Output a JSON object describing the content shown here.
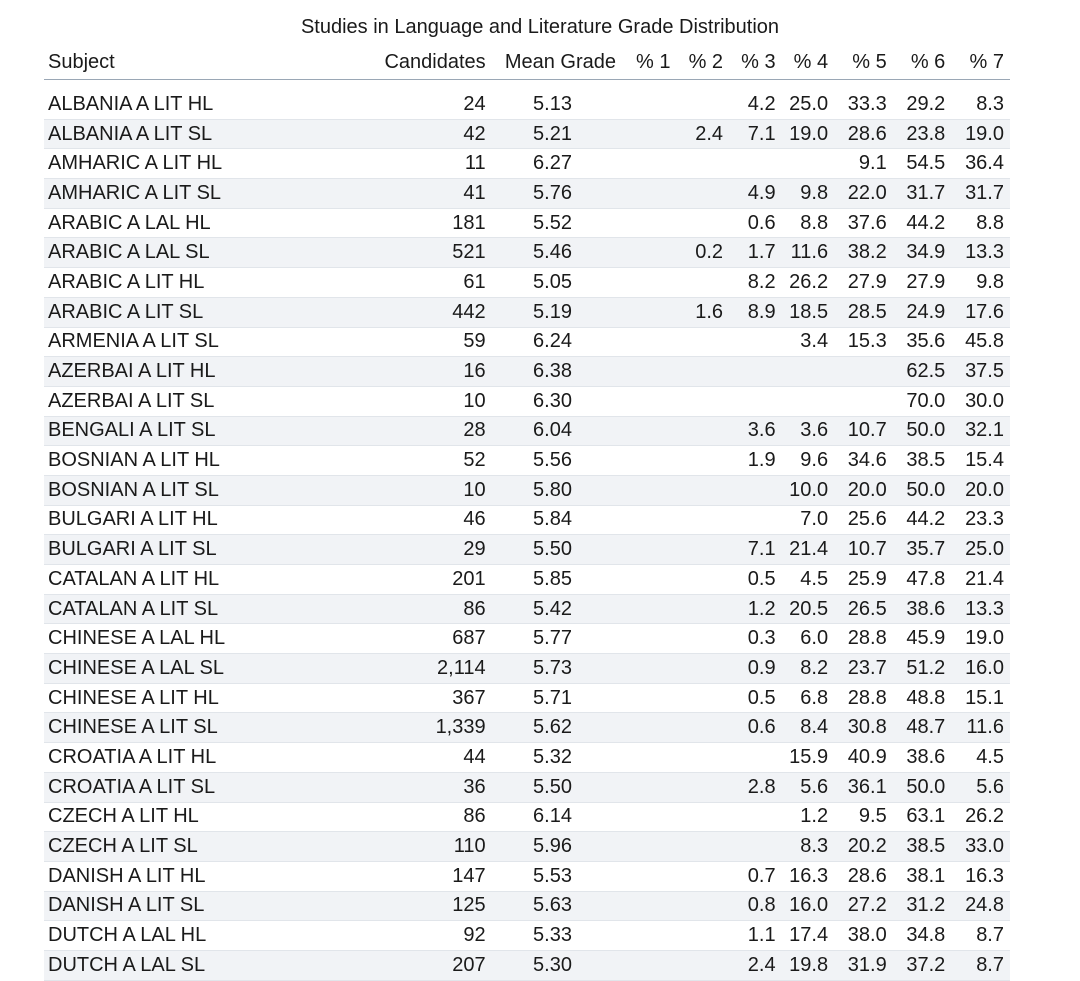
{
  "title": "Studies in Language and Literature Grade Distribution",
  "headers": {
    "subject": "Subject",
    "candidates": "Candidates",
    "mean": "Mean Grade",
    "p1": "% 1",
    "p2": "% 2",
    "p3": "% 3",
    "p4": "% 4",
    "p5": "% 5",
    "p6": "% 6",
    "p7": "% 7"
  },
  "rows": [
    {
      "subject": "ALBANIA A LIT HL",
      "candidates": "24",
      "mean": "5.13",
      "p1": "",
      "p2": "",
      "p3": "4.2",
      "p4": "25.0",
      "p5": "33.3",
      "p6": "29.2",
      "p7": "8.3"
    },
    {
      "subject": "ALBANIA A LIT SL",
      "candidates": "42",
      "mean": "5.21",
      "p1": "",
      "p2": "2.4",
      "p3": "7.1",
      "p4": "19.0",
      "p5": "28.6",
      "p6": "23.8",
      "p7": "19.0"
    },
    {
      "subject": "AMHARIC A LIT HL",
      "candidates": "11",
      "mean": "6.27",
      "p1": "",
      "p2": "",
      "p3": "",
      "p4": "",
      "p5": "9.1",
      "p6": "54.5",
      "p7": "36.4"
    },
    {
      "subject": "AMHARIC A LIT SL",
      "candidates": "41",
      "mean": "5.76",
      "p1": "",
      "p2": "",
      "p3": "4.9",
      "p4": "9.8",
      "p5": "22.0",
      "p6": "31.7",
      "p7": "31.7"
    },
    {
      "subject": "ARABIC A LAL HL",
      "candidates": "181",
      "mean": "5.52",
      "p1": "",
      "p2": "",
      "p3": "0.6",
      "p4": "8.8",
      "p5": "37.6",
      "p6": "44.2",
      "p7": "8.8"
    },
    {
      "subject": "ARABIC A LAL SL",
      "candidates": "521",
      "mean": "5.46",
      "p1": "",
      "p2": "0.2",
      "p3": "1.7",
      "p4": "11.6",
      "p5": "38.2",
      "p6": "34.9",
      "p7": "13.3"
    },
    {
      "subject": "ARABIC A LIT HL",
      "candidates": "61",
      "mean": "5.05",
      "p1": "",
      "p2": "",
      "p3": "8.2",
      "p4": "26.2",
      "p5": "27.9",
      "p6": "27.9",
      "p7": "9.8"
    },
    {
      "subject": "ARABIC A LIT SL",
      "candidates": "442",
      "mean": "5.19",
      "p1": "",
      "p2": "1.6",
      "p3": "8.9",
      "p4": "18.5",
      "p5": "28.5",
      "p6": "24.9",
      "p7": "17.6"
    },
    {
      "subject": "ARMENIA A LIT SL",
      "candidates": "59",
      "mean": "6.24",
      "p1": "",
      "p2": "",
      "p3": "",
      "p4": "3.4",
      "p5": "15.3",
      "p6": "35.6",
      "p7": "45.8"
    },
    {
      "subject": "AZERBAI A LIT HL",
      "candidates": "16",
      "mean": "6.38",
      "p1": "",
      "p2": "",
      "p3": "",
      "p4": "",
      "p5": "",
      "p6": "62.5",
      "p7": "37.5"
    },
    {
      "subject": "AZERBAI A LIT SL",
      "candidates": "10",
      "mean": "6.30",
      "p1": "",
      "p2": "",
      "p3": "",
      "p4": "",
      "p5": "",
      "p6": "70.0",
      "p7": "30.0"
    },
    {
      "subject": "BENGALI A LIT SL",
      "candidates": "28",
      "mean": "6.04",
      "p1": "",
      "p2": "",
      "p3": "3.6",
      "p4": "3.6",
      "p5": "10.7",
      "p6": "50.0",
      "p7": "32.1"
    },
    {
      "subject": "BOSNIAN A LIT HL",
      "candidates": "52",
      "mean": "5.56",
      "p1": "",
      "p2": "",
      "p3": "1.9",
      "p4": "9.6",
      "p5": "34.6",
      "p6": "38.5",
      "p7": "15.4"
    },
    {
      "subject": "BOSNIAN A LIT SL",
      "candidates": "10",
      "mean": "5.80",
      "p1": "",
      "p2": "",
      "p3": "",
      "p4": "10.0",
      "p5": "20.0",
      "p6": "50.0",
      "p7": "20.0"
    },
    {
      "subject": "BULGARI A LIT HL",
      "candidates": "46",
      "mean": "5.84",
      "p1": "",
      "p2": "",
      "p3": "",
      "p4": "7.0",
      "p5": "25.6",
      "p6": "44.2",
      "p7": "23.3"
    },
    {
      "subject": "BULGARI A LIT SL",
      "candidates": "29",
      "mean": "5.50",
      "p1": "",
      "p2": "",
      "p3": "7.1",
      "p4": "21.4",
      "p5": "10.7",
      "p6": "35.7",
      "p7": "25.0"
    },
    {
      "subject": "CATALAN A LIT HL",
      "candidates": "201",
      "mean": "5.85",
      "p1": "",
      "p2": "",
      "p3": "0.5",
      "p4": "4.5",
      "p5": "25.9",
      "p6": "47.8",
      "p7": "21.4"
    },
    {
      "subject": "CATALAN A LIT SL",
      "candidates": "86",
      "mean": "5.42",
      "p1": "",
      "p2": "",
      "p3": "1.2",
      "p4": "20.5",
      "p5": "26.5",
      "p6": "38.6",
      "p7": "13.3"
    },
    {
      "subject": "CHINESE A LAL HL",
      "candidates": "687",
      "mean": "5.77",
      "p1": "",
      "p2": "",
      "p3": "0.3",
      "p4": "6.0",
      "p5": "28.8",
      "p6": "45.9",
      "p7": "19.0"
    },
    {
      "subject": "CHINESE A LAL SL",
      "candidates": "2,114",
      "mean": "5.73",
      "p1": "",
      "p2": "",
      "p3": "0.9",
      "p4": "8.2",
      "p5": "23.7",
      "p6": "51.2",
      "p7": "16.0"
    },
    {
      "subject": "CHINESE A LIT HL",
      "candidates": "367",
      "mean": "5.71",
      "p1": "",
      "p2": "",
      "p3": "0.5",
      "p4": "6.8",
      "p5": "28.8",
      "p6": "48.8",
      "p7": "15.1"
    },
    {
      "subject": "CHINESE A LIT SL",
      "candidates": "1,339",
      "mean": "5.62",
      "p1": "",
      "p2": "",
      "p3": "0.6",
      "p4": "8.4",
      "p5": "30.8",
      "p6": "48.7",
      "p7": "11.6"
    },
    {
      "subject": "CROATIA A LIT HL",
      "candidates": "44",
      "mean": "5.32",
      "p1": "",
      "p2": "",
      "p3": "",
      "p4": "15.9",
      "p5": "40.9",
      "p6": "38.6",
      "p7": "4.5"
    },
    {
      "subject": "CROATIA A LIT SL",
      "candidates": "36",
      "mean": "5.50",
      "p1": "",
      "p2": "",
      "p3": "2.8",
      "p4": "5.6",
      "p5": "36.1",
      "p6": "50.0",
      "p7": "5.6"
    },
    {
      "subject": "CZECH A LIT HL",
      "candidates": "86",
      "mean": "6.14",
      "p1": "",
      "p2": "",
      "p3": "",
      "p4": "1.2",
      "p5": "9.5",
      "p6": "63.1",
      "p7": "26.2"
    },
    {
      "subject": "CZECH A LIT SL",
      "candidates": "110",
      "mean": "5.96",
      "p1": "",
      "p2": "",
      "p3": "",
      "p4": "8.3",
      "p5": "20.2",
      "p6": "38.5",
      "p7": "33.0"
    },
    {
      "subject": "DANISH A LIT HL",
      "candidates": "147",
      "mean": "5.53",
      "p1": "",
      "p2": "",
      "p3": "0.7",
      "p4": "16.3",
      "p5": "28.6",
      "p6": "38.1",
      "p7": "16.3"
    },
    {
      "subject": "DANISH A LIT SL",
      "candidates": "125",
      "mean": "5.63",
      "p1": "",
      "p2": "",
      "p3": "0.8",
      "p4": "16.0",
      "p5": "27.2",
      "p6": "31.2",
      "p7": "24.8"
    },
    {
      "subject": "DUTCH A LAL HL",
      "candidates": "92",
      "mean": "5.33",
      "p1": "",
      "p2": "",
      "p3": "1.1",
      "p4": "17.4",
      "p5": "38.0",
      "p6": "34.8",
      "p7": "8.7"
    },
    {
      "subject": "DUTCH A LAL SL",
      "candidates": "207",
      "mean": "5.30",
      "p1": "",
      "p2": "",
      "p3": "2.4",
      "p4": "19.8",
      "p5": "31.9",
      "p6": "37.2",
      "p7": "8.7"
    }
  ]
}
